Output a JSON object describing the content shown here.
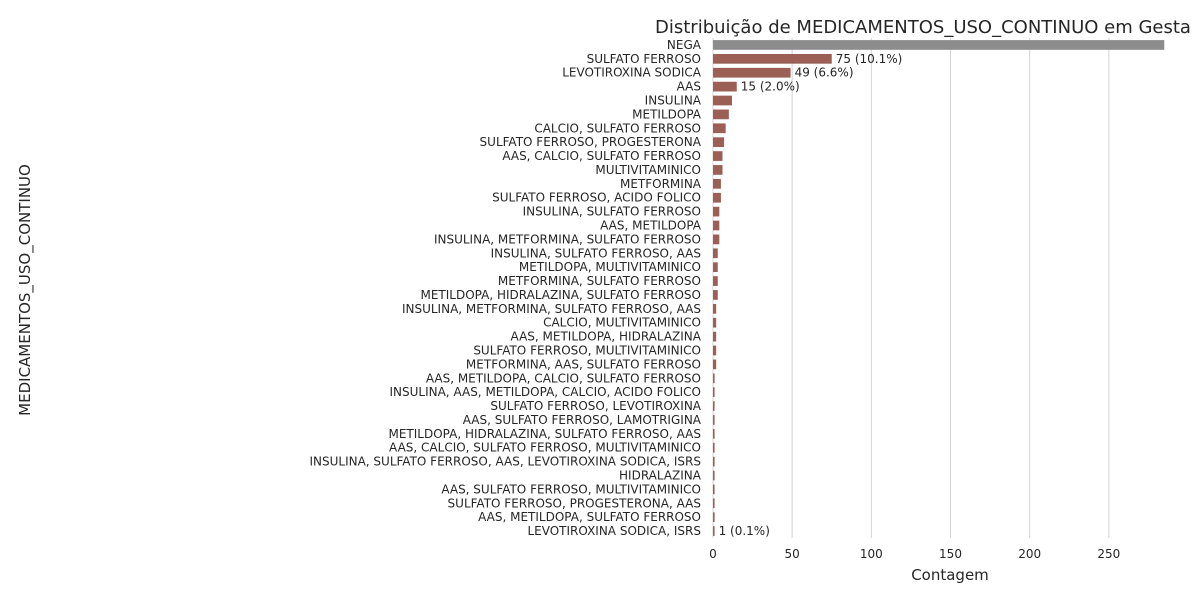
{
  "chart_data": {
    "type": "bar",
    "orientation": "horizontal",
    "title": "Distribuição de MEDICAMENTOS_USO_CONTINUO em Gesta",
    "xlabel": "Contagem",
    "ylabel": "MEDICAMENTOS_USO_CONTINUO",
    "xlim": [
      0,
      300
    ],
    "xticks": [
      0,
      50,
      100,
      150,
      200,
      250
    ],
    "grid": true,
    "legend": "none",
    "colors": {
      "bar_main": "#8c8c8c",
      "bar_rest": "#9b5f55",
      "grid": "#d4d4d4",
      "background": "#ffffff"
    },
    "bars": [
      {
        "label": "NEGA",
        "value": 285
      },
      {
        "label": "SULFATO FERROSO",
        "value": 75,
        "annotation": "75 (10.1%)"
      },
      {
        "label": "LEVOTIROXINA SODICA",
        "value": 49,
        "annotation": "49 (6.6%)"
      },
      {
        "label": "AAS",
        "value": 15,
        "annotation": "15 (2.0%)"
      },
      {
        "label": "INSULINA",
        "value": 12
      },
      {
        "label": "METILDOPA",
        "value": 10
      },
      {
        "label": "CALCIO, SULFATO FERROSO",
        "value": 8
      },
      {
        "label": "SULFATO FERROSO, PROGESTERONA",
        "value": 7
      },
      {
        "label": "AAS, CALCIO, SULFATO FERROSO",
        "value": 6
      },
      {
        "label": "MULTIVITAMINICO",
        "value": 6
      },
      {
        "label": "METFORMINA",
        "value": 5
      },
      {
        "label": "SULFATO FERROSO, ACIDO FOLICO",
        "value": 5
      },
      {
        "label": "INSULINA, SULFATO FERROSO",
        "value": 4
      },
      {
        "label": "AAS, METILDOPA",
        "value": 4
      },
      {
        "label": "INSULINA, METFORMINA, SULFATO FERROSO",
        "value": 4
      },
      {
        "label": "INSULINA, SULFATO FERROSO, AAS",
        "value": 3
      },
      {
        "label": "METILDOPA, MULTIVITAMINICO",
        "value": 3
      },
      {
        "label": "METFORMINA, SULFATO FERROSO",
        "value": 3
      },
      {
        "label": "METILDOPA, HIDRALAZINA, SULFATO FERROSO",
        "value": 3
      },
      {
        "label": "INSULINA, METFORMINA, SULFATO FERROSO, AAS",
        "value": 2
      },
      {
        "label": "CALCIO, MULTIVITAMINICO",
        "value": 2
      },
      {
        "label": "AAS, METILDOPA, HIDRALAZINA",
        "value": 2
      },
      {
        "label": "SULFATO FERROSO, MULTIVITAMINICO",
        "value": 2
      },
      {
        "label": "METFORMINA, AAS, SULFATO FERROSO",
        "value": 2
      },
      {
        "label": "AAS, METILDOPA, CALCIO, SULFATO FERROSO",
        "value": 1
      },
      {
        "label": "INSULINA, AAS, METILDOPA, CALCIO, ACIDO FOLICO",
        "value": 1
      },
      {
        "label": "SULFATO FERROSO, LEVOTIROXINA",
        "value": 1
      },
      {
        "label": "AAS, SULFATO FERROSO, LAMOTRIGINA",
        "value": 1
      },
      {
        "label": "METILDOPA, HIDRALAZINA, SULFATO FERROSO, AAS",
        "value": 1
      },
      {
        "label": "AAS, CALCIO, SULFATO FERROSO, MULTIVITAMINICO",
        "value": 1
      },
      {
        "label": "INSULINA, SULFATO FERROSO, AAS, LEVOTIROXINA SODICA, ISRS",
        "value": 1
      },
      {
        "label": "HIDRALAZINA",
        "value": 1
      },
      {
        "label": "AAS, SULFATO FERROSO, MULTIVITAMINICO",
        "value": 1
      },
      {
        "label": "SULFATO FERROSO, PROGESTERONA, AAS",
        "value": 1
      },
      {
        "label": "AAS, METILDOPA, SULFATO FERROSO",
        "value": 1
      },
      {
        "label": "LEVOTIROXINA SODICA, ISRS",
        "value": 1,
        "annotation": "1 (0.1%)"
      }
    ]
  }
}
